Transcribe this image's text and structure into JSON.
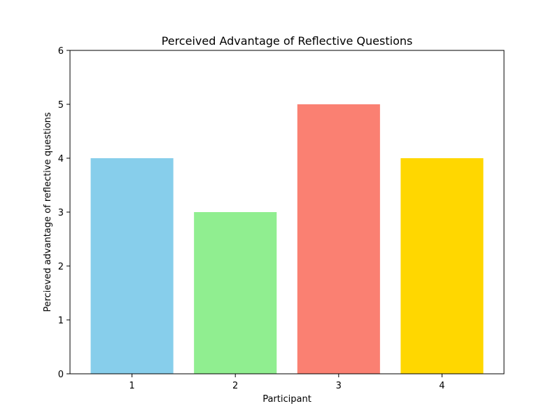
{
  "chart_data": {
    "type": "bar",
    "title": "Perceived Advantage of Reflective Questions",
    "xlabel": "Participant",
    "ylabel": "Percieved advantage of reflective questions",
    "categories": [
      "1",
      "2",
      "3",
      "4"
    ],
    "values": [
      4,
      3,
      5,
      4
    ],
    "colors": [
      "#87CEEB",
      "#90EE90",
      "#FA8072",
      "#FFD700"
    ],
    "ylim": [
      0,
      6
    ],
    "yticks": [
      0,
      1,
      2,
      3,
      4,
      5,
      6
    ],
    "yticks_labels": [
      "0",
      "1",
      "2",
      "3",
      "4",
      "5",
      "6"
    ],
    "grid": false,
    "legend": "none"
  }
}
